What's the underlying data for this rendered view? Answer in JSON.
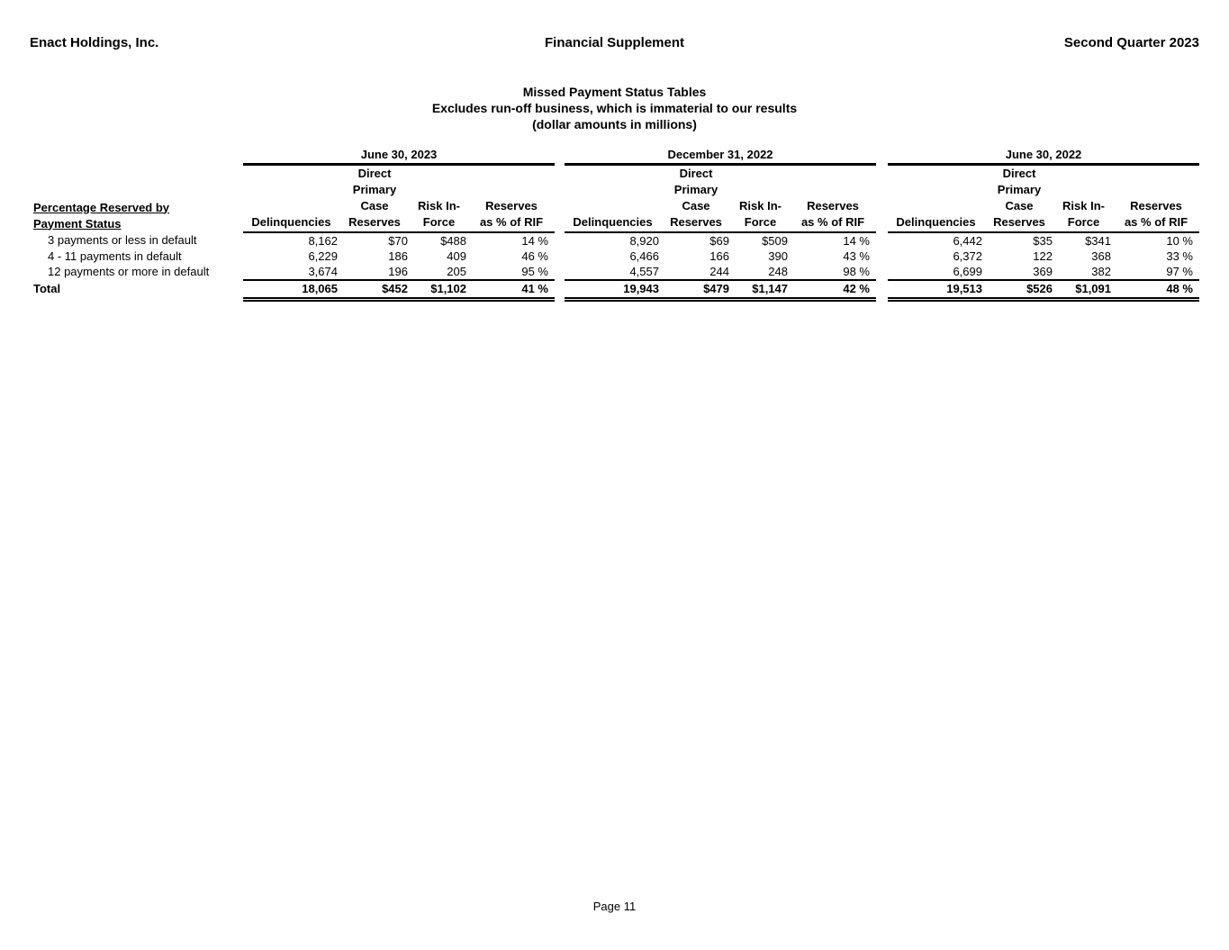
{
  "page_header": {
    "company": "Enact Holdings, Inc.",
    "document": "Financial Supplement",
    "period": "Second Quarter 2023"
  },
  "title_block": {
    "title": "Missed Payment Status Tables",
    "subtitle": "Excludes run-off business, which is immaterial to our results",
    "units": "(dollar amounts in millions)"
  },
  "table": {
    "row_header_line1": "Percentage Reserved by",
    "row_header_line2": "Payment Status",
    "col_headers": {
      "delinquencies": "Delinquencies",
      "case_reserves_lines": [
        "Direct",
        "Primary",
        "Case",
        "Reserves"
      ],
      "risk_in_force_lines": [
        "Risk In-",
        "Force"
      ],
      "reserves_pct_lines": [
        "Reserves",
        "as % of RIF"
      ]
    },
    "row_labels": [
      "3 payments or less in default",
      "4 - 11 payments in default",
      "12 payments or more in default"
    ],
    "total_label": "Total",
    "groups": [
      {
        "date": "June 30, 2023",
        "rows": [
          [
            "8,162",
            "$70",
            "$488",
            "14 %"
          ],
          [
            "6,229",
            "186",
            "409",
            "46 %"
          ],
          [
            "3,674",
            "196",
            "205",
            "95 %"
          ]
        ],
        "total": [
          "18,065",
          "$452",
          "$1,102",
          "41 %"
        ]
      },
      {
        "date": "December 31, 2022",
        "rows": [
          [
            "8,920",
            "$69",
            "$509",
            "14 %"
          ],
          [
            "6,466",
            "166",
            "390",
            "43 %"
          ],
          [
            "4,557",
            "244",
            "248",
            "98 %"
          ]
        ],
        "total": [
          "19,943",
          "$479",
          "$1,147",
          "42 %"
        ]
      },
      {
        "date": "June 30, 2022",
        "rows": [
          [
            "6,442",
            "$35",
            "$341",
            "10 %"
          ],
          [
            "6,372",
            "122",
            "368",
            "33 %"
          ],
          [
            "6,699",
            "369",
            "382",
            "97 %"
          ]
        ],
        "total": [
          "19,513",
          "$526",
          "$1,091",
          "48 %"
        ]
      }
    ]
  },
  "footer": {
    "page_number": "Page 11"
  }
}
